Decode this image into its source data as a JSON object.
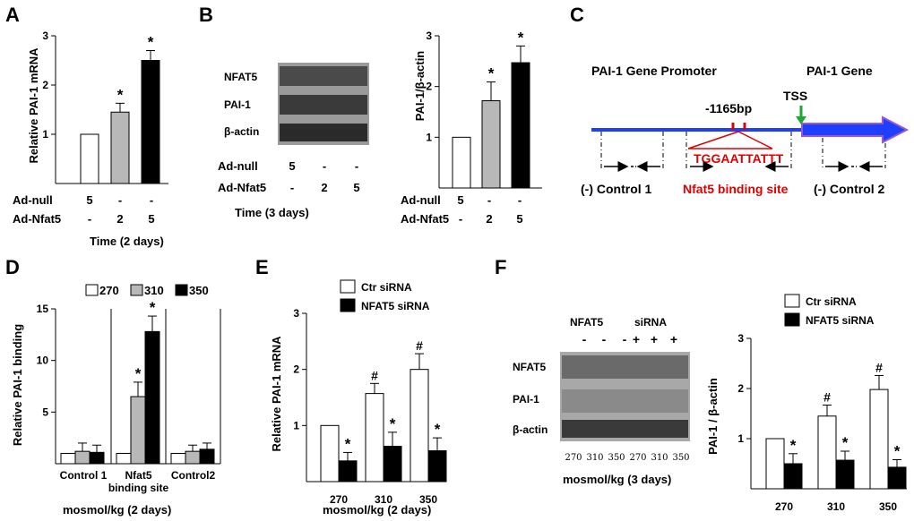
{
  "colors": {
    "white": "#ffffff",
    "gray": "#b8b8b8",
    "black": "#000000",
    "blue": "#1f3fff",
    "red": "#e00000",
    "purple": "#9b59d0",
    "green": "#1ea832"
  },
  "panels": {
    "A": {
      "letter": "A",
      "ylabel": "Relative PAI-1 mRNA",
      "footer": "Time (2 days)",
      "rows": [
        {
          "label": "Ad-null",
          "values": [
            "5",
            "-",
            "-"
          ]
        },
        {
          "label": "Ad-Nfat5",
          "values": [
            "-",
            "2",
            "5"
          ]
        }
      ]
    },
    "B": {
      "letter": "B",
      "ylabel": "PAI-1/β-actin",
      "blot_labels": [
        "NFAT5",
        "PAI-1",
        "β-actin"
      ],
      "blot_rows": [
        {
          "label": "Ad-null",
          "values": [
            "5",
            "-",
            "-"
          ]
        },
        {
          "label": "Ad-Nfat5",
          "values": [
            "-",
            "2",
            "5"
          ]
        }
      ],
      "blot_footer": "Time (3 days)",
      "rows": [
        {
          "label": "Ad-null",
          "values": [
            "5",
            "-",
            "-"
          ]
        },
        {
          "label": "Ad-Nfat5",
          "values": [
            "-",
            "2",
            "5"
          ]
        }
      ]
    },
    "C": {
      "letter": "C",
      "promoter_label": "PAI-1 Gene Promoter",
      "gene_label": "PAI-1 Gene",
      "tss_label": "TSS",
      "position_label": "-1165bp",
      "sequence": "TGGAATTATTT",
      "regions": [
        "(-) Control 1",
        "Nfat5 binding site",
        "(-) Control 2"
      ]
    },
    "D": {
      "letter": "D",
      "ylabel": "Relative PAI-1 binding",
      "legend": [
        "270",
        "310",
        "350"
      ],
      "groups": [
        "Control 1",
        "Nfat5\nbinding site",
        "Control2"
      ],
      "footer": "mosmol/kg (2 days)"
    },
    "E": {
      "letter": "E",
      "ylabel": "Relative PAI-1 mRNA",
      "legend": [
        "Ctr siRNA",
        "NFAT5 siRNA"
      ],
      "footer": "mosmol/kg (2 days)"
    },
    "F": {
      "letter": "F",
      "ylabel": "PAI-1 / β-actin",
      "legend": [
        "Ctr siRNA",
        "NFAT5 siRNA"
      ],
      "blot_header": [
        "NFAT5",
        "siRNA"
      ],
      "blot_signs": [
        "-",
        "-",
        "-",
        "+",
        "+",
        "+"
      ],
      "blot_labels": [
        "NFAT5",
        "PAI-1",
        "β-actin"
      ],
      "blot_lanes": [
        "270",
        "310",
        "350",
        "270",
        "310",
        "350"
      ],
      "blot_footer": "mosmol/kg (3 days)"
    }
  },
  "chart_data": [
    {
      "panel": "A",
      "type": "bar",
      "categories": [
        "5/-",
        "-/2",
        "-/5"
      ],
      "values": [
        1.0,
        1.45,
        2.5
      ],
      "errors": [
        0,
        0.18,
        0.2
      ],
      "significance": [
        "",
        "*",
        "*"
      ],
      "ylim": [
        0,
        3
      ],
      "yticks": [
        1,
        2,
        3
      ],
      "xlabel": "Time (2 days)",
      "ylabel": "Relative PAI-1 mRNA"
    },
    {
      "panel": "B",
      "type": "bar",
      "categories": [
        "5/-",
        "-/2",
        "-/5"
      ],
      "values": [
        1.0,
        1.72,
        2.47
      ],
      "errors": [
        0,
        0.37,
        0.33
      ],
      "significance": [
        "",
        "*",
        "*"
      ],
      "ylim": [
        0,
        3
      ],
      "yticks": [
        1,
        2,
        3
      ],
      "xlabel": "",
      "ylabel": "PAI-1/β-actin"
    },
    {
      "panel": "D",
      "type": "bar",
      "categories": [
        "Control 1",
        "Nfat5 binding site",
        "Control2"
      ],
      "series": [
        {
          "name": "270",
          "values": [
            1.0,
            1.0,
            1.0
          ],
          "errors": [
            0,
            0,
            0
          ],
          "significance": [
            "",
            "",
            ""
          ]
        },
        {
          "name": "310",
          "values": [
            1.2,
            6.5,
            1.2
          ],
          "errors": [
            0.8,
            1.4,
            0.6
          ],
          "significance": [
            "",
            "*",
            ""
          ]
        },
        {
          "name": "350",
          "values": [
            1.1,
            12.8,
            1.4
          ],
          "errors": [
            0.7,
            1.5,
            0.6
          ],
          "significance": [
            "",
            "*",
            ""
          ]
        }
      ],
      "ylim": [
        0,
        15
      ],
      "yticks": [
        5,
        10,
        15
      ],
      "xlabel": "mosmol/kg (2 days)",
      "ylabel": "Relative PAI-1 binding"
    },
    {
      "panel": "E",
      "type": "bar",
      "categories": [
        "270",
        "310",
        "350"
      ],
      "series": [
        {
          "name": "Ctr siRNA",
          "values": [
            1.0,
            1.57,
            2.0
          ],
          "errors": [
            0,
            0.18,
            0.28
          ],
          "significance": [
            "",
            "#",
            "#"
          ]
        },
        {
          "name": "NFAT5 siRNA",
          "values": [
            0.37,
            0.63,
            0.55
          ],
          "errors": [
            0.15,
            0.25,
            0.23
          ],
          "significance": [
            "*",
            "*",
            "*"
          ]
        }
      ],
      "ylim": [
        0,
        3
      ],
      "yticks": [
        1,
        2,
        3
      ],
      "xlabel": "mosmol/kg (2 days)",
      "ylabel": "Relative PAI-1 mRNA"
    },
    {
      "panel": "F",
      "type": "bar",
      "categories": [
        "270",
        "310",
        "350"
      ],
      "series": [
        {
          "name": "Ctr siRNA",
          "values": [
            1.0,
            1.45,
            1.98
          ],
          "errors": [
            0,
            0.22,
            0.28
          ],
          "significance": [
            "",
            "#",
            "#"
          ]
        },
        {
          "name": "NFAT5 siRNA",
          "values": [
            0.5,
            0.57,
            0.43
          ],
          "errors": [
            0.2,
            0.18,
            0.15
          ],
          "significance": [
            "*",
            "*",
            "*"
          ]
        }
      ],
      "ylim": [
        0,
        3
      ],
      "yticks": [
        1,
        2,
        3
      ],
      "xlabel": "",
      "ylabel": "PAI-1 / β-actin"
    }
  ]
}
